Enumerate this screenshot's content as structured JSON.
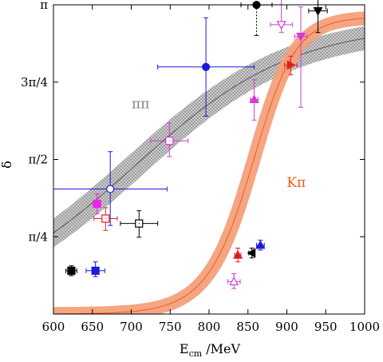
{
  "chart_data": {
    "type": "scatter",
    "xlabel_main": "E",
    "xlabel_sub": "cm",
    "xlabel_unit": " /MeV",
    "ylabel": "δ",
    "xlim": [
      600,
      1000
    ],
    "ylim": [
      0,
      3.1416
    ],
    "x_ticks": [
      {
        "value": 600,
        "label": "600"
      },
      {
        "value": 650,
        "label": "650"
      },
      {
        "value": 700,
        "label": "700"
      },
      {
        "value": 750,
        "label": "750"
      },
      {
        "value": 800,
        "label": "800"
      },
      {
        "value": 850,
        "label": "850"
      },
      {
        "value": 900,
        "label": "900"
      },
      {
        "value": 950,
        "label": "950"
      },
      {
        "value": 1000,
        "label": "1000"
      }
    ],
    "y_ticks": [
      {
        "value": 0.7854,
        "label": "π/4"
      },
      {
        "value": 1.5708,
        "label": "π/2"
      },
      {
        "value": 2.3562,
        "label": "3π/4"
      },
      {
        "value": 3.1416,
        "label": "π"
      }
    ],
    "annotations": [
      {
        "text": "ππ",
        "x": 712,
        "y": 2.09,
        "color": "#808080"
      },
      {
        "text": "Kπ",
        "x": 912,
        "y": 1.29,
        "color": "#e8601c"
      }
    ],
    "bands": [
      {
        "label": "ππ",
        "color": "#808080",
        "pattern": "crosshatch",
        "curve": {
          "m": 720,
          "g": 100,
          "start": 0,
          "end": 2.949,
          "a": 0.87
        },
        "halfwidth": 0.12
      },
      {
        "label": "Kπ",
        "color": "#f4a07a",
        "line_color": "#e8601c",
        "pattern": "solid",
        "curve": {
          "m": 866,
          "g": 26,
          "start": 0,
          "end": 3.017,
          "a": 0.75
        },
        "halfwidth": 0.07
      }
    ],
    "points": [
      {
        "x": 861,
        "y": 3.14,
        "xerr": 20,
        "yerr_up": 0,
        "yerr_down": 0.31,
        "color": "#000000",
        "marker": "circle",
        "filled": true,
        "dashed": true
      },
      {
        "x": 940,
        "y": 3.08,
        "xerr": 12,
        "yerr_up": 0.12,
        "yerr_down": 0.22,
        "color": "#000000",
        "marker": "tri-down",
        "filled": true
      },
      {
        "x": 893,
        "y": 2.94,
        "xerr": 14,
        "yerr_up": 0.28,
        "yerr_down": 0.08,
        "color": "#d23cd6",
        "marker": "tri-down",
        "filled": false
      },
      {
        "x": 918,
        "y": 2.82,
        "xerr": 8,
        "yerr_up": 0.3,
        "yerr_down": 0.72,
        "color": "#d23cd6",
        "marker": "tri-down",
        "filled": true
      },
      {
        "x": 905,
        "y": 2.53,
        "xerr": 8,
        "yerr_up": 0.09,
        "yerr_down": 0.1,
        "color": "#e02020",
        "marker": "tri-right",
        "filled": true
      },
      {
        "x": 796,
        "y": 2.51,
        "xerr": 62,
        "yerr_up": 0.5,
        "yerr_down": 0.5,
        "color": "#1a1adc",
        "marker": "circle",
        "filled": true
      },
      {
        "x": 858,
        "y": 2.18,
        "xerr": 5,
        "yerr_up": 0.2,
        "yerr_down": 0.21,
        "color": "#d23cd6",
        "marker": "tri-up",
        "filled": true
      },
      {
        "x": 749,
        "y": 1.76,
        "xerr": 24,
        "yerr_up": 0.18,
        "yerr_down": 0.16,
        "color": "#d23cd6",
        "marker": "square",
        "filled": false
      },
      {
        "x": 673,
        "y": 1.27,
        "xerr": 73,
        "yerr_up": 0.38,
        "yerr_down": 0.37,
        "color": "#1a1adc",
        "marker": "circle",
        "filled": false
      },
      {
        "x": 656,
        "y": 1.12,
        "xerr": 5,
        "yerr_up": 0.1,
        "yerr_down": 0.1,
        "color": "#ee22ee",
        "marker": "square",
        "filled": true
      },
      {
        "x": 667,
        "y": 0.97,
        "xerr": 15,
        "yerr_up": 0.11,
        "yerr_down": 0.12,
        "color": "#e02020",
        "marker": "square",
        "filled": false
      },
      {
        "x": 710,
        "y": 0.92,
        "xerr": 24,
        "yerr_up": 0.13,
        "yerr_down": 0.14,
        "color": "#000000",
        "marker": "square",
        "filled": false
      },
      {
        "x": 866,
        "y": 0.7,
        "xerr": 5,
        "yerr_up": 0.05,
        "yerr_down": 0.05,
        "color": "#1a1adc",
        "marker": "tri-up",
        "filled": true
      },
      {
        "x": 855,
        "y": 0.62,
        "xerr": 4,
        "yerr_up": 0.05,
        "yerr_down": 0.05,
        "color": "#000000",
        "marker": "tri-left",
        "filled": true
      },
      {
        "x": 837,
        "y": 0.6,
        "xerr": 4,
        "yerr_up": 0.07,
        "yerr_down": 0.07,
        "color": "#e02020",
        "marker": "tri-up",
        "filled": true
      },
      {
        "x": 623,
        "y": 0.44,
        "xerr": 7,
        "yerr_up": 0.05,
        "yerr_down": 0.05,
        "color": "#000000",
        "marker": "square",
        "filled": true
      },
      {
        "x": 654,
        "y": 0.44,
        "xerr": 12,
        "yerr_up": 0.09,
        "yerr_down": 0.06,
        "color": "#1a1adc",
        "marker": "square",
        "filled": true
      },
      {
        "x": 832,
        "y": 0.33,
        "xerr": 8,
        "yerr_up": 0.08,
        "yerr_down": 0.07,
        "color": "#d23cd6",
        "marker": "tri-up",
        "filled": false
      }
    ]
  }
}
